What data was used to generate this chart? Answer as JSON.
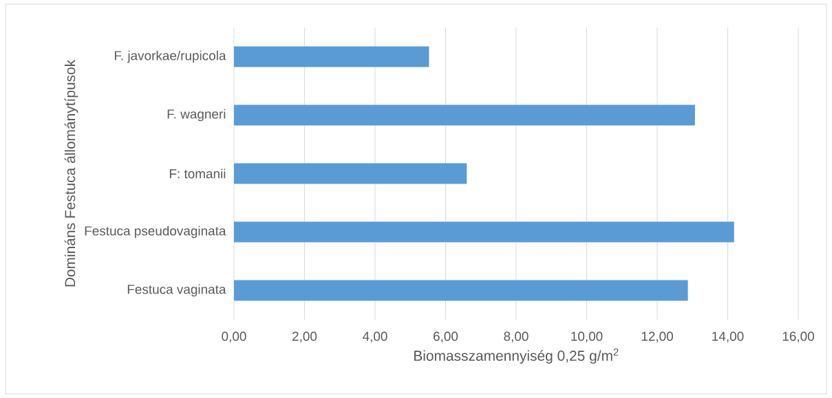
{
  "chart_data": {
    "type": "bar",
    "orientation": "horizontal",
    "categories": [
      "F. javorkae/rupicola",
      "F. wagneri",
      "F: tomanii",
      "Festuca pseudovaginata",
      "Festuca vaginata"
    ],
    "values": [
      5.53,
      13.07,
      6.6,
      14.18,
      12.87
    ],
    "color": "#5b9bd5",
    "xlabel": "Biomasszamennyiség 0,25 g/m$^{2}$",
    "ylabel": "Domináns Festuca állománytípusok",
    "xlim": [
      0,
      16
    ],
    "xticks": [
      {
        "value": 0,
        "label": "0,00"
      },
      {
        "value": 2,
        "label": "2,00"
      },
      {
        "value": 4,
        "label": "4,00"
      },
      {
        "value": 6,
        "label": "6,00"
      },
      {
        "value": 8,
        "label": "8,00"
      },
      {
        "value": 10,
        "label": "10,00"
      },
      {
        "value": 12,
        "label": "12,00"
      },
      {
        "value": 14,
        "label": "14,00"
      },
      {
        "value": 16,
        "label": "16,00"
      }
    ],
    "grid": "x"
  }
}
